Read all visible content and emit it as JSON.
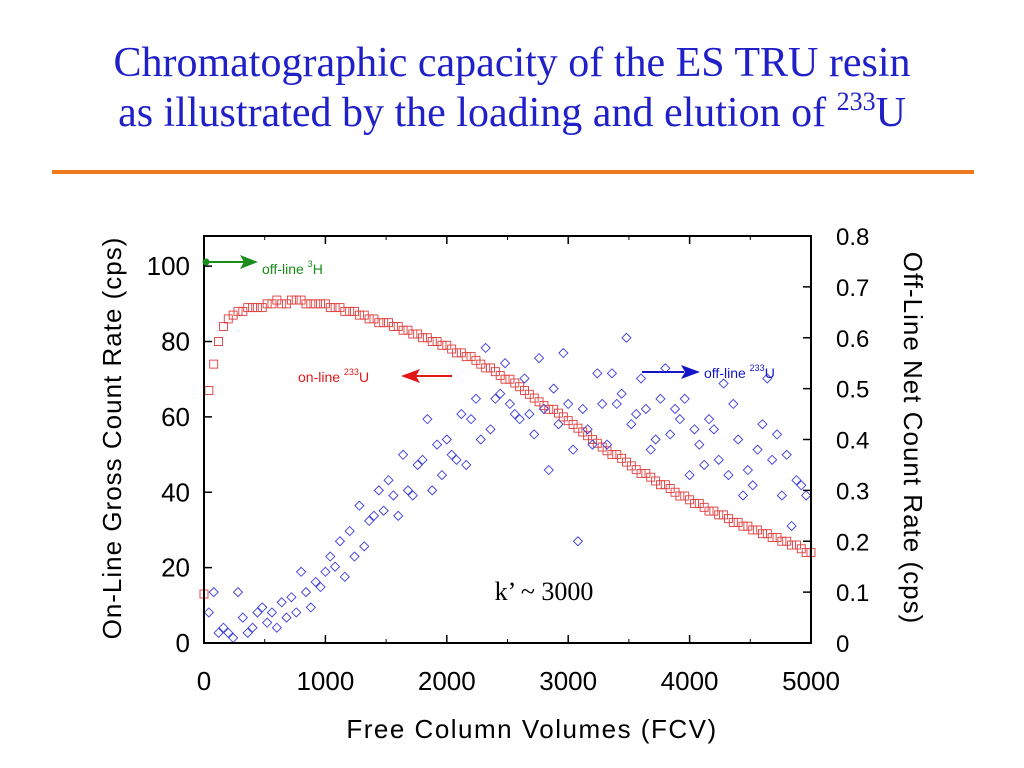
{
  "slide": {
    "title_line1": "Chromatographic capacity of the ES TRU resin",
    "title_line2_prefix": "as illustrated by the loading and elution of ",
    "title_sup": "233",
    "title_line2_suffix": "U"
  },
  "colors": {
    "title": "#2020c8",
    "rule": "#f07a1e",
    "online_series": "#e03c3c",
    "offline_u_series": "#3c3cdc",
    "offline_h_arrow": "#1a8c1a",
    "offline_u_arrow": "#1515c8"
  },
  "chart_data": {
    "type": "scatter",
    "xlabel": "Free Column Volumes (FCV)",
    "ylabel": "On-Line Gross Count Rate (cps)",
    "y2label": "Off-Line Net Count Rate (cps)",
    "xlim": [
      0,
      5000
    ],
    "ylim": [
      0,
      108
    ],
    "y2lim": [
      0,
      0.8
    ],
    "xticks": [
      "0",
      "1000",
      "2000",
      "3000",
      "4000",
      "5000"
    ],
    "yticks": [
      "0",
      "20",
      "40",
      "60",
      "80",
      "100"
    ],
    "y2ticks": [
      "0",
      "0.1",
      "0.2",
      "0.3",
      "0.4",
      "0.5",
      "0.6",
      "0.7",
      "0.8"
    ],
    "grid": false,
    "annotation": "k’ ~ 3000",
    "labels": {
      "off_h": {
        "text": "off-line ",
        "sup": "3",
        "suffix": "H"
      },
      "on_u": {
        "text": "on-line ",
        "sup": "233",
        "suffix": "U"
      },
      "off_u": {
        "text": "off-line ",
        "sup": "233",
        "suffix": "U"
      }
    },
    "series": [
      {
        "id": "on_line_233U",
        "axis": "left",
        "marker": "square",
        "x": [
          0,
          40,
          80,
          120,
          160,
          200,
          240,
          280,
          320,
          360,
          400,
          440,
          480,
          520,
          560,
          600,
          640,
          680,
          720,
          760,
          800,
          840,
          880,
          920,
          960,
          1000,
          1040,
          1080,
          1120,
          1160,
          1200,
          1240,
          1280,
          1320,
          1360,
          1400,
          1440,
          1480,
          1520,
          1560,
          1600,
          1640,
          1680,
          1720,
          1760,
          1800,
          1840,
          1880,
          1920,
          1960,
          2000,
          2040,
          2080,
          2120,
          2160,
          2200,
          2240,
          2280,
          2320,
          2360,
          2400,
          2440,
          2480,
          2520,
          2560,
          2600,
          2640,
          2680,
          2720,
          2760,
          2800,
          2840,
          2880,
          2920,
          2960,
          3000,
          3040,
          3080,
          3120,
          3160,
          3200,
          3240,
          3280,
          3320,
          3360,
          3400,
          3440,
          3480,
          3520,
          3560,
          3600,
          3640,
          3680,
          3720,
          3760,
          3800,
          3840,
          3880,
          3920,
          3960,
          4000,
          4040,
          4080,
          4120,
          4160,
          4200,
          4240,
          4280,
          4320,
          4360,
          4400,
          4440,
          4480,
          4520,
          4560,
          4600,
          4640,
          4680,
          4720,
          4760,
          4800,
          4840,
          4880,
          4920,
          4960,
          5000
        ],
        "y": [
          13,
          67,
          74,
          80,
          84,
          86,
          87,
          88,
          88,
          89,
          89,
          89,
          89,
          90,
          90,
          91,
          90,
          90,
          91,
          91,
          91,
          90,
          90,
          90,
          90,
          90,
          89,
          89,
          89,
          88,
          88,
          88,
          87,
          87,
          86,
          86,
          85,
          85,
          85,
          84,
          84,
          83,
          83,
          82,
          82,
          81,
          81,
          80,
          80,
          79,
          79,
          78,
          77,
          77,
          76,
          76,
          75,
          74,
          73,
          73,
          72,
          71,
          70,
          70,
          69,
          68,
          67,
          66,
          65,
          64,
          63,
          62,
          62,
          61,
          60,
          59,
          58,
          57,
          56,
          55,
          54,
          53,
          52,
          51,
          50,
          50,
          49,
          48,
          47,
          46,
          45,
          45,
          44,
          43,
          42,
          42,
          41,
          40,
          39,
          39,
          38,
          37,
          37,
          36,
          35,
          35,
          34,
          34,
          33,
          32,
          32,
          31,
          31,
          30,
          30,
          29,
          29,
          28,
          28,
          27,
          27,
          26,
          26,
          25,
          24,
          24
        ]
      },
      {
        "id": "off_line_233U",
        "axis": "right",
        "marker": "diamond",
        "x": [
          40,
          80,
          120,
          160,
          200,
          240,
          280,
          320,
          360,
          400,
          440,
          480,
          520,
          560,
          600,
          640,
          680,
          720,
          760,
          800,
          840,
          880,
          920,
          960,
          1000,
          1040,
          1080,
          1120,
          1160,
          1200,
          1240,
          1280,
          1320,
          1360,
          1400,
          1440,
          1480,
          1520,
          1560,
          1600,
          1640,
          1680,
          1720,
          1760,
          1800,
          1840,
          1880,
          1920,
          1960,
          2000,
          2040,
          2080,
          2120,
          2160,
          2200,
          2240,
          2280,
          2320,
          2360,
          2400,
          2440,
          2480,
          2520,
          2560,
          2600,
          2640,
          2680,
          2720,
          2760,
          2800,
          2840,
          2880,
          2920,
          2960,
          3000,
          3040,
          3080,
          3120,
          3160,
          3200,
          3240,
          3280,
          3320,
          3360,
          3400,
          3440,
          3480,
          3520,
          3560,
          3600,
          3640,
          3680,
          3720,
          3760,
          3800,
          3840,
          3880,
          3920,
          3960,
          4000,
          4040,
          4080,
          4120,
          4160,
          4200,
          4240,
          4280,
          4320,
          4360,
          4400,
          4440,
          4480,
          4520,
          4560,
          4600,
          4640,
          4680,
          4720,
          4760,
          4800,
          4840,
          4880,
          4920,
          4960
        ],
        "y": [
          0.06,
          0.1,
          0.02,
          0.03,
          0.02,
          0.01,
          0.1,
          0.05,
          0.02,
          0.03,
          0.06,
          0.07,
          0.04,
          0.06,
          0.03,
          0.08,
          0.05,
          0.09,
          0.06,
          0.14,
          0.1,
          0.07,
          0.12,
          0.11,
          0.14,
          0.17,
          0.15,
          0.2,
          0.13,
          0.22,
          0.17,
          0.27,
          0.19,
          0.24,
          0.25,
          0.3,
          0.26,
          0.32,
          0.29,
          0.25,
          0.37,
          0.3,
          0.29,
          0.35,
          0.36,
          0.44,
          0.3,
          0.39,
          0.33,
          0.4,
          0.37,
          0.36,
          0.45,
          0.35,
          0.44,
          0.48,
          0.4,
          0.58,
          0.42,
          0.48,
          0.49,
          0.55,
          0.47,
          0.45,
          0.44,
          0.52,
          0.45,
          0.41,
          0.56,
          0.46,
          0.34,
          0.5,
          0.43,
          0.57,
          0.47,
          0.38,
          0.2,
          0.46,
          0.42,
          0.39,
          0.53,
          0.47,
          0.39,
          0.53,
          0.47,
          0.49,
          0.6,
          0.43,
          0.45,
          0.52,
          0.46,
          0.38,
          0.4,
          0.48,
          0.54,
          0.41,
          0.46,
          0.44,
          0.48,
          0.33,
          0.42,
          0.39,
          0.35,
          0.44,
          0.42,
          0.36,
          0.51,
          0.33,
          0.47,
          0.4,
          0.29,
          0.34,
          0.31,
          0.38,
          0.43,
          0.52,
          0.36,
          0.41,
          0.29,
          0.37,
          0.23,
          0.32,
          0.31,
          0.29
        ]
      }
    ]
  }
}
